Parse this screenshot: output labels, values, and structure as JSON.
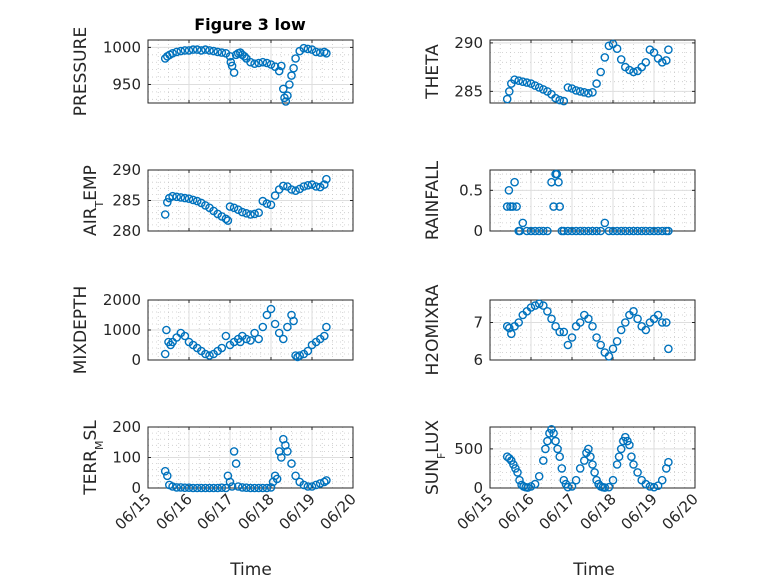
{
  "figure": {
    "title": "Figure 3 low",
    "xlabel": "Time"
  },
  "colors": {
    "marker": "#0072BD",
    "axis": "#262626",
    "grid": "#dedede"
  },
  "chart_data": [
    {
      "type": "scatter",
      "ylabel": "PRESSURE",
      "ylim": [
        925,
        1010
      ],
      "yticks": [
        950,
        1000
      ],
      "ytick_labels": [
        "950",
        "1000"
      ],
      "xlim": [
        15,
        20
      ],
      "xticks": [
        15,
        16,
        17,
        18,
        19,
        20
      ],
      "xtick_labels": [
        "06/15",
        "06/16",
        "06/17",
        "06/18",
        "06/19",
        "06/20"
      ],
      "show_xticklabels": false,
      "grid": true,
      "marker": "o",
      "x": [
        15.42,
        15.47,
        15.53,
        15.6,
        15.7,
        15.8,
        15.9,
        16.0,
        16.1,
        16.2,
        16.3,
        16.4,
        16.5,
        16.6,
        16.7,
        16.8,
        16.9,
        17.0,
        17.02,
        17.05,
        17.1,
        17.15,
        17.2,
        17.25,
        17.3,
        17.35,
        17.4,
        17.5,
        17.6,
        17.7,
        17.8,
        17.9,
        18.0,
        18.1,
        18.2,
        18.25,
        18.3,
        18.33,
        18.36,
        18.4,
        18.45,
        18.5,
        18.55,
        18.6,
        18.7,
        18.8,
        18.9,
        19.0,
        19.1,
        19.2,
        19.3,
        19.35
      ],
      "y": [
        985,
        988,
        990,
        992,
        994,
        995,
        996,
        996,
        997,
        997,
        996,
        997,
        996,
        995,
        994,
        993,
        992,
        988,
        980,
        975,
        966,
        990,
        992,
        993,
        990,
        988,
        985,
        980,
        978,
        979,
        980,
        979,
        977,
        974,
        968,
        975,
        944,
        932,
        927,
        935,
        950,
        962,
        972,
        985,
        995,
        999,
        998,
        997,
        994,
        993,
        994,
        992
      ]
    },
    {
      "type": "scatter",
      "ylabel": "THETA",
      "ylim": [
        283.8,
        290.3
      ],
      "yticks": [
        285,
        290
      ],
      "ytick_labels": [
        "285",
        "290"
      ],
      "xlim": [
        15,
        20
      ],
      "xticks": [
        15,
        16,
        17,
        18,
        19,
        20
      ],
      "xtick_labels": [
        "06/15",
        "06/16",
        "06/17",
        "06/18",
        "06/19",
        "06/20"
      ],
      "show_xticklabels": false,
      "grid": true,
      "marker": "o",
      "x": [
        15.42,
        15.47,
        15.52,
        15.6,
        15.7,
        15.8,
        15.9,
        16.0,
        16.1,
        16.2,
        16.3,
        16.4,
        16.5,
        16.6,
        16.7,
        16.8,
        16.9,
        17.0,
        17.1,
        17.2,
        17.3,
        17.4,
        17.5,
        17.6,
        17.7,
        17.8,
        17.9,
        18.0,
        18.1,
        18.2,
        18.3,
        18.4,
        18.5,
        18.6,
        18.7,
        18.8,
        18.9,
        19.0,
        19.1,
        19.2,
        19.3,
        19.35
      ],
      "y": [
        284.2,
        285.0,
        285.8,
        286.2,
        286.1,
        286.0,
        285.9,
        285.8,
        285.6,
        285.4,
        285.2,
        285.0,
        284.7,
        284.3,
        284.1,
        284.0,
        285.4,
        285.3,
        285.1,
        285.0,
        284.9,
        284.8,
        284.9,
        285.8,
        287.0,
        288.5,
        289.7,
        289.9,
        289.4,
        288.3,
        287.5,
        287.2,
        287.0,
        287.1,
        287.5,
        288.0,
        289.3,
        289.0,
        288.4,
        288.0,
        288.2,
        289.3
      ]
    },
    {
      "type": "scatter",
      "ylabel": "AIR_TEMP",
      "ylim": [
        280,
        290
      ],
      "yticks": [
        280,
        285,
        290
      ],
      "ytick_labels": [
        "280",
        "285",
        "290"
      ],
      "xlim": [
        15,
        20
      ],
      "xticks": [
        15,
        16,
        17,
        18,
        19,
        20
      ],
      "xtick_labels": [
        "06/15",
        "06/16",
        "06/17",
        "06/18",
        "06/19",
        "06/20"
      ],
      "show_xticklabels": false,
      "grid": true,
      "marker": "o",
      "x": [
        15.42,
        15.47,
        15.52,
        15.6,
        15.7,
        15.8,
        15.9,
        16.0,
        16.1,
        16.2,
        16.3,
        16.4,
        16.5,
        16.6,
        16.7,
        16.8,
        16.9,
        16.95,
        17.0,
        17.1,
        17.2,
        17.3,
        17.4,
        17.5,
        17.6,
        17.7,
        17.8,
        17.9,
        18.0,
        18.1,
        18.2,
        18.3,
        18.4,
        18.5,
        18.6,
        18.7,
        18.8,
        18.9,
        19.0,
        19.1,
        19.2,
        19.3,
        19.35
      ],
      "y": [
        282.7,
        284.7,
        285.4,
        285.7,
        285.6,
        285.5,
        285.4,
        285.3,
        285.1,
        284.9,
        284.6,
        284.2,
        283.8,
        283.3,
        282.8,
        282.4,
        282.0,
        281.7,
        284.0,
        283.8,
        283.5,
        283.1,
        282.9,
        282.7,
        282.8,
        283.0,
        284.9,
        284.5,
        284.3,
        285.8,
        286.8,
        287.4,
        287.3,
        286.8,
        286.6,
        286.9,
        287.3,
        287.5,
        287.6,
        287.3,
        287.2,
        287.6,
        288.5
      ]
    },
    {
      "type": "scatter",
      "ylabel": "RAINFALL",
      "ylim": [
        0,
        0.75
      ],
      "yticks": [
        0,
        0.5
      ],
      "ytick_labels": [
        "0",
        "0.5"
      ],
      "xlim": [
        15,
        20
      ],
      "xticks": [
        15,
        16,
        17,
        18,
        19,
        20
      ],
      "xtick_labels": [
        "06/15",
        "06/16",
        "06/17",
        "06/18",
        "06/19",
        "06/20"
      ],
      "show_xticklabels": false,
      "grid": true,
      "marker": "o",
      "x": [
        15.42,
        15.46,
        15.5,
        15.55,
        15.6,
        15.65,
        15.7,
        15.73,
        15.8,
        15.9,
        16.0,
        16.1,
        16.2,
        16.3,
        16.4,
        16.5,
        16.55,
        16.6,
        16.63,
        16.67,
        16.7,
        16.75,
        16.8,
        16.9,
        17.0,
        17.1,
        17.2,
        17.3,
        17.4,
        17.5,
        17.6,
        17.7,
        17.8,
        17.9,
        18.0,
        18.1,
        18.2,
        18.3,
        18.4,
        18.5,
        18.6,
        18.7,
        18.8,
        18.9,
        19.0,
        19.1,
        19.2,
        19.3,
        19.35
      ],
      "y": [
        0.3,
        0.5,
        0.3,
        0.3,
        0.6,
        0.3,
        0.0,
        0.0,
        0.1,
        0.0,
        0.0,
        0.0,
        0.0,
        0.0,
        0.0,
        0.6,
        0.3,
        0.7,
        0.7,
        0.6,
        0.3,
        0.0,
        0.0,
        0.0,
        0.0,
        0.0,
        0.0,
        0.0,
        0.0,
        0.0,
        0.0,
        0.0,
        0.1,
        0.0,
        0.0,
        0.0,
        0.0,
        0.0,
        0.0,
        0.0,
        0.0,
        0.0,
        0.0,
        0.0,
        0.0,
        0.0,
        0.0,
        0.0,
        0.0
      ]
    },
    {
      "type": "scatter",
      "ylabel": "MIXDEPTH",
      "ylim": [
        0,
        2000
      ],
      "yticks": [
        0,
        1000,
        2000
      ],
      "ytick_labels": [
        "0",
        "1000",
        "2000"
      ],
      "xlim": [
        15,
        20
      ],
      "xticks": [
        15,
        16,
        17,
        18,
        19,
        20
      ],
      "xtick_labels": [
        "06/15",
        "06/16",
        "06/17",
        "06/18",
        "06/19",
        "06/20"
      ],
      "show_xticklabels": false,
      "grid": true,
      "marker": "o",
      "x": [
        15.42,
        15.45,
        15.5,
        15.55,
        15.6,
        15.7,
        15.8,
        15.9,
        16.0,
        16.1,
        16.2,
        16.3,
        16.4,
        16.5,
        16.6,
        16.7,
        16.8,
        16.9,
        17.0,
        17.1,
        17.2,
        17.25,
        17.3,
        17.4,
        17.5,
        17.6,
        17.7,
        17.8,
        17.9,
        18.0,
        18.1,
        18.2,
        18.3,
        18.4,
        18.5,
        18.55,
        18.6,
        18.65,
        18.7,
        18.8,
        18.9,
        19.0,
        19.1,
        19.2,
        19.3,
        19.35
      ],
      "y": [
        200,
        1000,
        600,
        500,
        600,
        750,
        900,
        800,
        600,
        500,
        400,
        300,
        200,
        150,
        200,
        300,
        400,
        800,
        500,
        600,
        700,
        600,
        800,
        700,
        650,
        900,
        700,
        1100,
        1500,
        1700,
        1200,
        900,
        700,
        1100,
        1500,
        1300,
        150,
        100,
        150,
        200,
        300,
        500,
        600,
        700,
        800,
        1100
      ]
    },
    {
      "type": "scatter",
      "ylabel": "H2OMIXRA",
      "ylim": [
        6,
        7.6
      ],
      "yticks": [
        6,
        7
      ],
      "ytick_labels": [
        "6",
        "7"
      ],
      "xlim": [
        15,
        20
      ],
      "xticks": [
        15,
        16,
        17,
        18,
        19,
        20
      ],
      "xtick_labels": [
        "06/15",
        "06/16",
        "06/17",
        "06/18",
        "06/19",
        "06/20"
      ],
      "show_xticklabels": false,
      "grid": true,
      "marker": "o",
      "x": [
        15.42,
        15.47,
        15.52,
        15.6,
        15.7,
        15.8,
        15.9,
        16.0,
        16.1,
        16.2,
        16.3,
        16.4,
        16.5,
        16.6,
        16.7,
        16.8,
        16.9,
        17.0,
        17.1,
        17.2,
        17.3,
        17.4,
        17.5,
        17.6,
        17.7,
        17.8,
        17.9,
        18.0,
        18.1,
        18.2,
        18.3,
        18.4,
        18.5,
        18.6,
        18.7,
        18.8,
        18.9,
        19.0,
        19.1,
        19.2,
        19.3,
        19.35
      ],
      "y": [
        6.9,
        6.85,
        6.7,
        6.9,
        7.0,
        7.2,
        7.3,
        7.4,
        7.45,
        7.5,
        7.45,
        7.3,
        7.1,
        6.9,
        6.75,
        6.75,
        6.4,
        6.6,
        6.9,
        7.0,
        7.2,
        7.1,
        6.9,
        6.6,
        6.4,
        6.2,
        6.1,
        6.3,
        6.5,
        6.8,
        7.0,
        7.2,
        7.3,
        7.1,
        6.9,
        6.8,
        7.0,
        7.1,
        7.2,
        7.0,
        7.0,
        6.3
      ]
    },
    {
      "type": "scatter",
      "ylabel": "TERR_MSL",
      "ylim": [
        0,
        200
      ],
      "yticks": [
        0,
        100,
        200
      ],
      "ytick_labels": [
        "0",
        "100",
        "200"
      ],
      "xlim": [
        15,
        20
      ],
      "xticks": [
        15,
        16,
        17,
        18,
        19,
        20
      ],
      "xtick_labels": [
        "06/15",
        "06/16",
        "06/17",
        "06/18",
        "06/19",
        "06/20"
      ],
      "show_xticklabels": true,
      "grid": true,
      "marker": "o",
      "x": [
        15.42,
        15.47,
        15.52,
        15.6,
        15.7,
        15.8,
        15.9,
        16.0,
        16.1,
        16.2,
        16.3,
        16.4,
        16.5,
        16.6,
        16.7,
        16.8,
        16.9,
        16.95,
        17.0,
        17.05,
        17.1,
        17.15,
        17.2,
        17.3,
        17.4,
        17.5,
        17.6,
        17.7,
        17.8,
        17.9,
        18.0,
        18.05,
        18.1,
        18.15,
        18.2,
        18.25,
        18.3,
        18.35,
        18.4,
        18.5,
        18.6,
        18.7,
        18.8,
        18.9,
        19.0,
        19.1,
        19.2,
        19.3,
        19.35
      ],
      "y": [
        55,
        40,
        10,
        5,
        2,
        2,
        1,
        1,
        0,
        0,
        0,
        0,
        0,
        0,
        0,
        1,
        0,
        40,
        20,
        5,
        120,
        80,
        5,
        2,
        1,
        0,
        0,
        0,
        0,
        0,
        2,
        20,
        40,
        30,
        120,
        100,
        160,
        140,
        120,
        80,
        40,
        20,
        10,
        5,
        5,
        10,
        15,
        20,
        25
      ]
    },
    {
      "type": "scatter",
      "ylabel": "SUN_FLUX",
      "ylim": [
        0,
        780
      ],
      "yticks": [
        0,
        500
      ],
      "ytick_labels": [
        "0",
        "500"
      ],
      "xlim": [
        15,
        20
      ],
      "xticks": [
        15,
        16,
        17,
        18,
        19,
        20
      ],
      "xtick_labels": [
        "06/15",
        "06/16",
        "06/17",
        "06/18",
        "06/19",
        "06/20"
      ],
      "show_xticklabels": true,
      "grid": true,
      "marker": "o",
      "x": [
        15.42,
        15.47,
        15.52,
        15.57,
        15.62,
        15.67,
        15.72,
        15.77,
        15.82,
        15.87,
        15.92,
        16.0,
        16.1,
        16.2,
        16.3,
        16.35,
        16.4,
        16.45,
        16.5,
        16.55,
        16.6,
        16.65,
        16.7,
        16.75,
        16.8,
        16.85,
        16.9,
        17.0,
        17.1,
        17.2,
        17.3,
        17.35,
        17.4,
        17.45,
        17.5,
        17.55,
        17.6,
        17.65,
        17.7,
        17.75,
        17.8,
        17.9,
        18.0,
        18.1,
        18.15,
        18.2,
        18.25,
        18.3,
        18.35,
        18.4,
        18.45,
        18.5,
        18.6,
        18.7,
        18.8,
        18.9,
        19.0,
        19.1,
        19.2,
        19.3,
        19.35
      ],
      "y": [
        400,
        380,
        350,
        300,
        250,
        200,
        100,
        40,
        20,
        10,
        5,
        20,
        50,
        150,
        350,
        500,
        600,
        700,
        750,
        700,
        600,
        500,
        400,
        250,
        100,
        50,
        10,
        20,
        100,
        250,
        350,
        450,
        500,
        400,
        300,
        200,
        100,
        50,
        20,
        10,
        5,
        10,
        100,
        300,
        400,
        500,
        600,
        650,
        600,
        550,
        400,
        300,
        200,
        100,
        50,
        20,
        10,
        30,
        100,
        250,
        330
      ]
    }
  ]
}
